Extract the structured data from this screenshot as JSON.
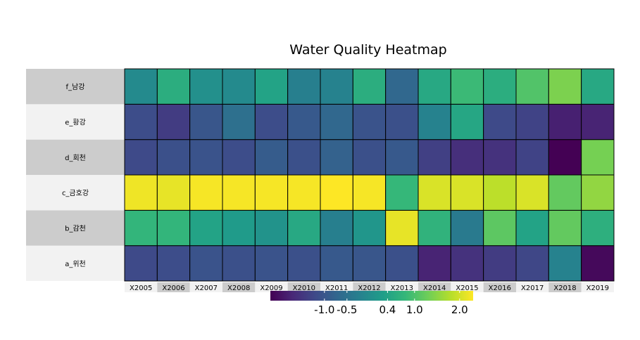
{
  "chart_data": {
    "type": "heatmap",
    "title": "Water Quality Heatmap",
    "x": [
      "X2005",
      "X2006",
      "X2007",
      "X2008",
      "X2009",
      "X2010",
      "X2011",
      "X2012",
      "X2013",
      "X2014",
      "X2015",
      "X2016",
      "X2017",
      "X2018",
      "X2019"
    ],
    "y": [
      "a_위천",
      "b_감천",
      "c_금호강",
      "d_회천",
      "e_황강",
      "f_남강"
    ],
    "values": [
      [
        -1.2,
        -1.15,
        -1.05,
        -1.1,
        -1.05,
        -1.1,
        -0.95,
        -1.0,
        -1.1,
        -1.75,
        -1.55,
        -1.4,
        -1.25,
        -0.2,
        -2.1
      ],
      [
        0.75,
        0.75,
        0.4,
        0.25,
        0.1,
        0.5,
        -0.25,
        0.15,
        2.15,
        0.7,
        -0.35,
        1.15,
        0.4,
        1.2,
        0.65
      ],
      [
        2.2,
        2.15,
        2.25,
        2.25,
        2.25,
        2.25,
        2.3,
        2.25,
        0.8,
        2.05,
        2.05,
        1.85,
        2.05,
        1.2,
        1.55
      ],
      [
        -1.2,
        -1.1,
        -1.05,
        -1.15,
        -0.9,
        -1.1,
        -0.8,
        -1.1,
        -0.95,
        -1.35,
        -1.6,
        -1.55,
        -1.3,
        -2.2,
        1.35
      ],
      [
        -1.15,
        -1.4,
        -1.0,
        -0.55,
        -1.15,
        -0.95,
        -0.7,
        -1.05,
        -1.1,
        -0.2,
        0.45,
        -1.2,
        -1.3,
        -1.8,
        -1.75
      ],
      [
        -0.05,
        0.6,
        0.05,
        -0.05,
        0.4,
        -0.25,
        -0.2,
        0.6,
        -0.7,
        0.5,
        0.85,
        0.6,
        1.05,
        1.4,
        0.5
      ]
    ],
    "colorbar": {
      "ticks": [
        -1.0,
        -0.5,
        0.4,
        1.0,
        2.0
      ],
      "tick_labels": [
        "-1.0",
        "-0.5",
        "0.4",
        "1.0",
        "2.0"
      ],
      "range": [
        -2.2,
        2.3
      ]
    },
    "colormap": "viridis",
    "legend_placement": "bottom",
    "grid": false,
    "row_label_band_colors": [
      "#f2f2f2",
      "#cccccc"
    ],
    "cell_border_color": "#000000"
  }
}
